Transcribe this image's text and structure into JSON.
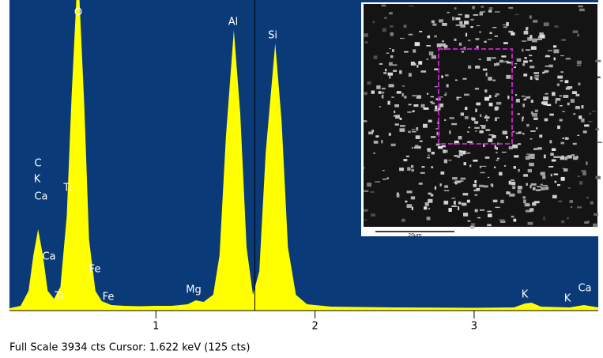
{
  "chart_data": {
    "type": "area",
    "color": "#ffff00",
    "background": "#0a3a78",
    "x": [
      0.08,
      0.15,
      0.2,
      0.23,
      0.26,
      0.29,
      0.32,
      0.36,
      0.4,
      0.44,
      0.47,
      0.5,
      0.52,
      0.55,
      0.58,
      0.62,
      0.66,
      0.72,
      0.8,
      0.9,
      1.0,
      1.1,
      1.2,
      1.25,
      1.3,
      1.36,
      1.4,
      1.44,
      1.49,
      1.53,
      1.57,
      1.61,
      1.65,
      1.69,
      1.75,
      1.79,
      1.83,
      1.88,
      1.95,
      2.1,
      2.5,
      3.0,
      3.25,
      3.32,
      3.36,
      3.42,
      3.6,
      3.69,
      3.78
    ],
    "values": [
      30,
      60,
      250,
      700,
      1031,
      700,
      250,
      150,
      300,
      1200,
      2700,
      3934,
      3934,
      2600,
      900,
      250,
      120,
      70,
      60,
      55,
      60,
      60,
      80,
      130,
      110,
      200,
      700,
      2200,
      3554,
      2500,
      800,
      200,
      500,
      2000,
      3384,
      2400,
      800,
      200,
      80,
      50,
      40,
      35,
      40,
      90,
      100,
      50,
      40,
      70,
      40
    ],
    "xlim": [
      0.08,
      3.78
    ],
    "ylim": [
      0,
      3934
    ],
    "xticks": [
      1,
      2,
      3
    ],
    "cursor": 1.622,
    "peak_labels": [
      "C",
      "K",
      "Ca",
      "Ti",
      "Ca",
      "O",
      "Ti",
      "Fe",
      "Fe",
      "Mg",
      "Al",
      "Si",
      "K",
      "K",
      "Ca"
    ],
    "status": "Full Scale 3934 cts  Cursor: 1.622 keV (125 cts)"
  },
  "inset": {
    "scale_label": "20µm"
  }
}
